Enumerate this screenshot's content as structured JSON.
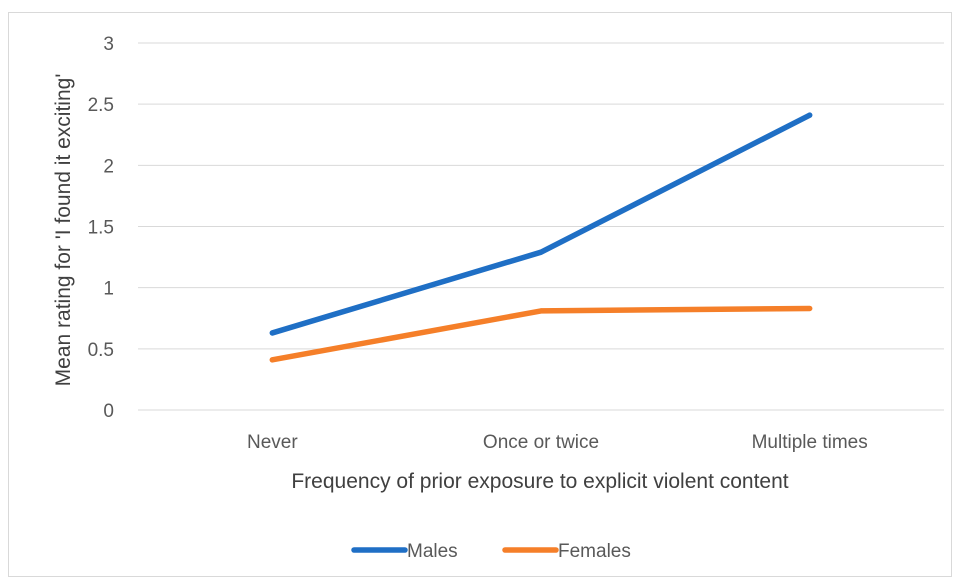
{
  "chart_data": {
    "type": "line",
    "categories": [
      "Never",
      "Once or twice",
      "Multiple times"
    ],
    "series": [
      {
        "name": "Males",
        "values": [
          0.63,
          1.29,
          2.41
        ],
        "color": "#1f6fc5"
      },
      {
        "name": "Females",
        "values": [
          0.41,
          0.81,
          0.83
        ],
        "color": "#f57f29"
      }
    ],
    "title": "",
    "xlabel": "Frequency of prior exposure to explicit violent content",
    "ylabel": "Mean rating for 'I found it exciting'",
    "ylim": [
      0,
      3
    ],
    "yticks": [
      "0",
      "0.5",
      "1",
      "1.5",
      "2",
      "2.5",
      "3"
    ],
    "grid": true,
    "legend_position": "bottom"
  }
}
